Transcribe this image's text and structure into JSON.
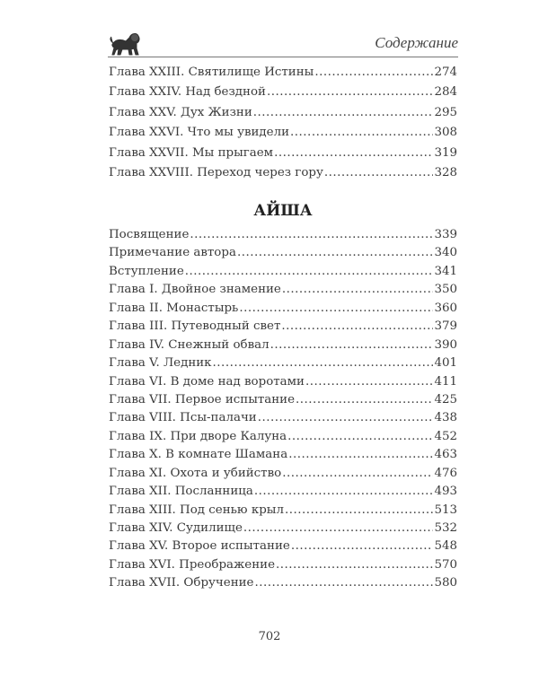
{
  "header": {
    "title": "Содержание",
    "logo": "lion-emblem"
  },
  "toc_part1": [
    {
      "title": "Глава XXIII. Святилище Истины",
      "page": "274"
    },
    {
      "title": "Глава XXIV. Над бездной",
      "page": "284"
    },
    {
      "title": "Глава XXV. Дух Жизни",
      "page": "295"
    },
    {
      "title": "Глава XXVI. Что мы увидели",
      "page": "308"
    },
    {
      "title": "Глава XXVII. Мы прыгаем",
      "page": "319"
    },
    {
      "title": "Глава XXVIII. Переход через гору",
      "page": "328"
    }
  ],
  "section_title": "АЙША",
  "toc_part2": [
    {
      "title": "Посвящение",
      "page": "339"
    },
    {
      "title": "Примечание автора",
      "page": "340"
    },
    {
      "title": "Вступление",
      "page": "341"
    },
    {
      "title": "Глава I. Двойное знамение",
      "page": "350"
    },
    {
      "title": "Глава II. Монастырь",
      "page": "360"
    },
    {
      "title": "Глава III. Путеводный свет",
      "page": "379"
    },
    {
      "title": "Глава IV. Снежный обвал",
      "page": "390"
    },
    {
      "title": "Глава V. Ледник",
      "page": "401"
    },
    {
      "title": "Глава VI. В доме над воротами",
      "page": "411"
    },
    {
      "title": "Глава VII. Первое испытание",
      "page": "425"
    },
    {
      "title": "Глава VIII. Псы-палачи",
      "page": "438"
    },
    {
      "title": "Глава IX. При дворе Калуна",
      "page": "452"
    },
    {
      "title": "Глава X. В комнате Шамана",
      "page": "463"
    },
    {
      "title": "Глава XI. Охота и убийство",
      "page": "476"
    },
    {
      "title": "Глава XII. Посланница",
      "page": "493"
    },
    {
      "title": "Глава XIII. Под сенью крыл",
      "page": "513"
    },
    {
      "title": "Глава XIV. Судилище",
      "page": "532"
    },
    {
      "title": "Глава XV. Второе испытание",
      "page": "548"
    },
    {
      "title": "Глава XVI. Преображение",
      "page": "570"
    },
    {
      "title": "Глава XVII. Обручение",
      "page": "580"
    }
  ],
  "page_number": "702"
}
